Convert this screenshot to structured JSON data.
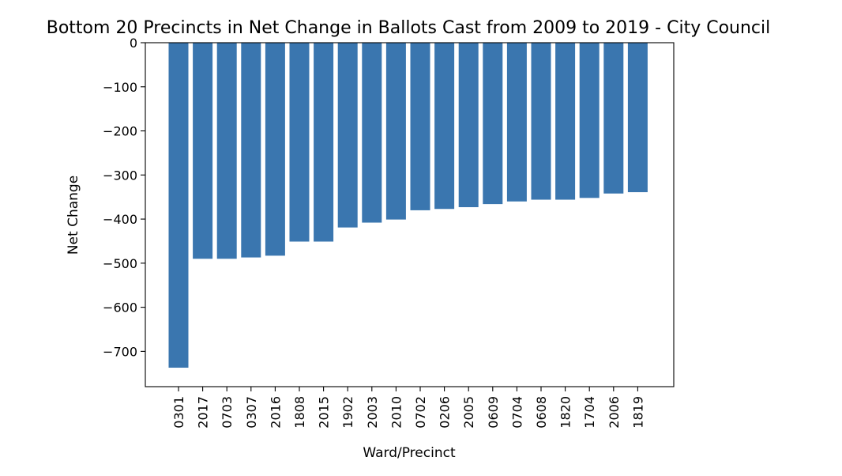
{
  "chart_data": {
    "type": "bar",
    "title": "Bottom 20 Precincts in Net Change in Ballots Cast from 2009 to 2019 - City Council",
    "xlabel": "Ward/Precinct",
    "ylabel": "Net Change",
    "categories": [
      "0301",
      "2017",
      "0703",
      "0307",
      "2016",
      "1808",
      "2015",
      "1902",
      "2003",
      "2010",
      "0702",
      "0206",
      "2005",
      "0609",
      "0704",
      "0608",
      "1820",
      "1704",
      "2006",
      "1819"
    ],
    "values": [
      -737,
      -490,
      -490,
      -487,
      -483,
      -451,
      -451,
      -419,
      -408,
      -401,
      -380,
      -377,
      -373,
      -366,
      -360,
      -356,
      -356,
      -352,
      -342,
      -339
    ],
    "ylim": [
      -780,
      0
    ],
    "yticks": [
      0,
      -100,
      -200,
      -300,
      -400,
      -500,
      -600,
      -700
    ],
    "ytick_labels": [
      "0",
      "−100",
      "−200",
      "−300",
      "−400",
      "−500",
      "−600",
      "−700"
    ],
    "bar_color": "#3a76af",
    "grid": false,
    "legend": "none"
  }
}
